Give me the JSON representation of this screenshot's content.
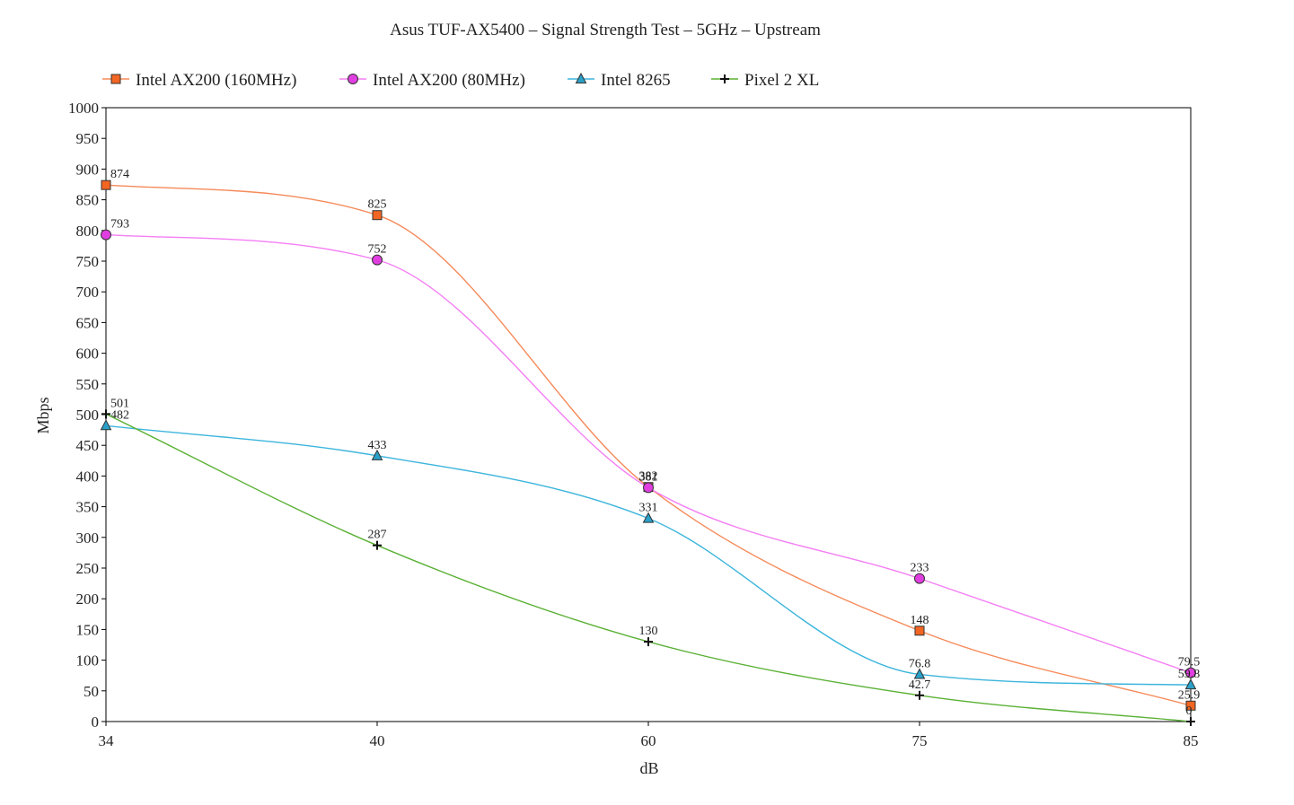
{
  "chart_data": {
    "type": "line",
    "title": "Asus TUF-AX5400 – Signal Strength Test – 5GHz – Upstream",
    "xlabel": "dB",
    "ylabel": "Mbps",
    "categories": [
      "34",
      "40",
      "60",
      "75",
      "85"
    ],
    "ylim": [
      0,
      1000
    ],
    "yticks": [
      "0",
      "50",
      "100",
      "150",
      "200",
      "250",
      "300",
      "350",
      "400",
      "450",
      "500",
      "550",
      "600",
      "650",
      "700",
      "750",
      "800",
      "850",
      "900",
      "950",
      "1000"
    ],
    "grid": false,
    "legend_position": "top",
    "series": [
      {
        "name": "Intel AX200 (160MHz)",
        "values": [
          874,
          825,
          382,
          148,
          25.9
        ],
        "labels": [
          "874",
          "825",
          "382",
          "148",
          "25.9"
        ],
        "color": "#f58a5a",
        "marker": "square",
        "marker_fill": "#f26522"
      },
      {
        "name": "Intel AX200 (80MHz)",
        "values": [
          793,
          752,
          381,
          233,
          79.5
        ],
        "labels": [
          "793",
          "752",
          "381",
          "233",
          "79.5"
        ],
        "color": "#f47ef4",
        "marker": "circle",
        "marker_fill": "#e03ee0"
      },
      {
        "name": "Intel 8265",
        "values": [
          482,
          433,
          331,
          76.8,
          59.8
        ],
        "labels": [
          "482",
          "433",
          "331",
          "76.8",
          "59.8"
        ],
        "color": "#3db5dc",
        "marker": "triangle",
        "marker_fill": "#2aa0c8"
      },
      {
        "name": "Pixel 2 XL",
        "values": [
          501,
          287,
          130,
          42.7,
          0
        ],
        "labels": [
          "501",
          "287",
          "130",
          "42.7",
          "0"
        ],
        "color": "#5bb136",
        "marker": "plus",
        "marker_fill": "#111111"
      }
    ]
  }
}
